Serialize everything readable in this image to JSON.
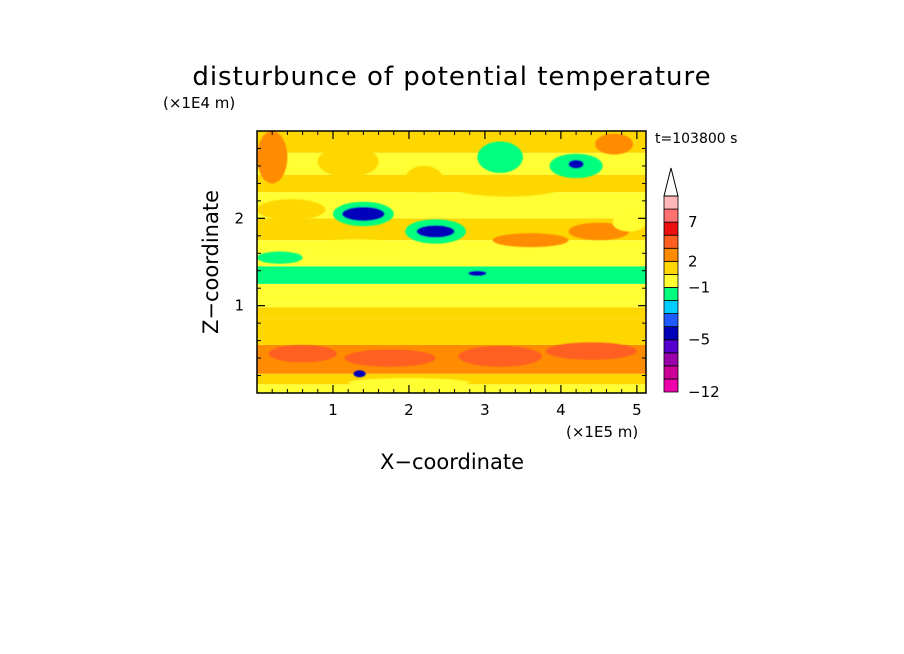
{
  "chart_data": {
    "type": "heatmap",
    "title": "disturbunce of potential temperature",
    "time_label": "t=103800 s",
    "xlabel": "X−coordinate",
    "ylabel": "Z−coordinate",
    "x_unit": "(×1E5 m)",
    "y_unit": "(×1E4 m)",
    "xlim": [
      0,
      5.12
    ],
    "ylim": [
      0,
      3.0
    ],
    "x_ticks": [
      1,
      2,
      3,
      4,
      5
    ],
    "x_tick_labels": [
      "1",
      "2",
      "3",
      "4",
      "5"
    ],
    "y_ticks": [
      1,
      2
    ],
    "y_tick_labels": [
      "1",
      "2"
    ],
    "colorbar": {
      "levels": [
        -12,
        -10,
        -8,
        -6,
        -5,
        -4,
        -3,
        -2,
        -1,
        1,
        2,
        3,
        5,
        7,
        9,
        11
      ],
      "colors": [
        "#ee00aa",
        "#cc0099",
        "#9900aa",
        "#5500cc",
        "#0000bb",
        "#1e5aff",
        "#00ccff",
        "#00ff7f",
        "#ffff33",
        "#ffd700",
        "#ff8c00",
        "#ff6020",
        "#ee1010",
        "#ff7070",
        "#ffb6b6"
      ],
      "labels": [
        "-12",
        "-5",
        "-1",
        "2",
        "7"
      ],
      "label_values": [
        -12,
        -5,
        -1,
        2,
        7
      ],
      "extend": "max",
      "extend_color": "#ffffff"
    },
    "bands": [
      {
        "z0": 0.0,
        "z1": 0.1,
        "v": 0.5
      },
      {
        "z0": 0.1,
        "z1": 0.22,
        "v": 1.5
      },
      {
        "z0": 0.22,
        "z1": 0.55,
        "v": 2.5
      },
      {
        "z0": 0.55,
        "z1": 0.85,
        "v": 1.5
      },
      {
        "z0": 0.85,
        "z1": 0.98,
        "v": 1.2
      },
      {
        "z0": 0.98,
        "z1": 1.05,
        "v": 0.5
      },
      {
        "z0": 1.05,
        "z1": 1.25,
        "v": 0.3
      },
      {
        "z0": 1.25,
        "z1": 1.45,
        "v": -1.5
      },
      {
        "z0": 1.45,
        "z1": 1.75,
        "v": 0.6
      },
      {
        "z0": 1.75,
        "z1": 2.0,
        "v": 1.5
      },
      {
        "z0": 2.0,
        "z1": 2.3,
        "v": 0.5
      },
      {
        "z0": 2.3,
        "z1": 2.5,
        "v": 1.5
      },
      {
        "z0": 2.5,
        "z1": 2.75,
        "v": 0.4
      },
      {
        "z0": 2.75,
        "z1": 3.0,
        "v": 1.5
      }
    ],
    "blobs": [
      {
        "x": 1.2,
        "z": 2.65,
        "rx": 0.4,
        "rz": 0.18,
        "v": 1.5
      },
      {
        "x": 0.2,
        "z": 2.7,
        "rx": 0.2,
        "rz": 0.3,
        "v": 2.5
      },
      {
        "x": 0.45,
        "z": 2.1,
        "rx": 0.45,
        "rz": 0.12,
        "v": 1.5
      },
      {
        "x": 0.3,
        "z": 1.55,
        "rx": 0.3,
        "rz": 0.07,
        "v": -1.5
      },
      {
        "x": 1.4,
        "z": 2.05,
        "rx": 0.4,
        "rz": 0.14,
        "v": -1.5
      },
      {
        "x": 1.4,
        "z": 2.05,
        "rx": 0.28,
        "rz": 0.08,
        "v": -4.5
      },
      {
        "x": 2.35,
        "z": 1.85,
        "rx": 0.4,
        "rz": 0.14,
        "v": -1.5
      },
      {
        "x": 2.35,
        "z": 1.85,
        "rx": 0.25,
        "rz": 0.07,
        "v": -4.5
      },
      {
        "x": 2.2,
        "z": 2.45,
        "rx": 0.25,
        "rz": 0.15,
        "v": 1.5
      },
      {
        "x": 3.3,
        "z": 2.35,
        "rx": 0.7,
        "rz": 0.1,
        "v": 1.5
      },
      {
        "x": 3.2,
        "z": 2.7,
        "rx": 0.3,
        "rz": 0.18,
        "v": -1.5
      },
      {
        "x": 4.2,
        "z": 2.6,
        "rx": 0.35,
        "rz": 0.14,
        "v": -1.5
      },
      {
        "x": 4.2,
        "z": 2.62,
        "rx": 0.1,
        "rz": 0.05,
        "v": -4.5
      },
      {
        "x": 4.7,
        "z": 2.85,
        "rx": 0.25,
        "rz": 0.12,
        "v": 2.5
      },
      {
        "x": 3.6,
        "z": 1.75,
        "rx": 0.5,
        "rz": 0.08,
        "v": 2.5
      },
      {
        "x": 4.5,
        "z": 1.85,
        "rx": 0.4,
        "rz": 0.1,
        "v": 2.5
      },
      {
        "x": 3.5,
        "z": 1.35,
        "rx": 1.0,
        "rz": 0.08,
        "v": -1.5
      },
      {
        "x": 2.9,
        "z": 1.37,
        "rx": 0.12,
        "rz": 0.03,
        "v": -4.5
      },
      {
        "x": 4.8,
        "z": 1.35,
        "rx": 0.3,
        "rz": 0.07,
        "v": -1.5
      },
      {
        "x": 4.9,
        "z": 1.95,
        "rx": 0.22,
        "rz": 0.1,
        "v": 0.5
      },
      {
        "x": 1.3,
        "z": 1.68,
        "rx": 0.6,
        "rz": 0.08,
        "v": 0.5
      },
      {
        "x": 3.2,
        "z": 0.42,
        "rx": 0.55,
        "rz": 0.12,
        "v": 4.0
      },
      {
        "x": 1.75,
        "z": 0.4,
        "rx": 0.6,
        "rz": 0.1,
        "v": 3.5
      },
      {
        "x": 4.4,
        "z": 0.48,
        "rx": 0.6,
        "rz": 0.1,
        "v": 3.5
      },
      {
        "x": 0.6,
        "z": 0.45,
        "rx": 0.45,
        "rz": 0.1,
        "v": 3.0
      },
      {
        "x": 1.35,
        "z": 0.22,
        "rx": 0.08,
        "rz": 0.04,
        "v": -4.5
      },
      {
        "x": 2.0,
        "z": 0.12,
        "rx": 0.8,
        "rz": 0.05,
        "v": 0.5
      }
    ]
  }
}
